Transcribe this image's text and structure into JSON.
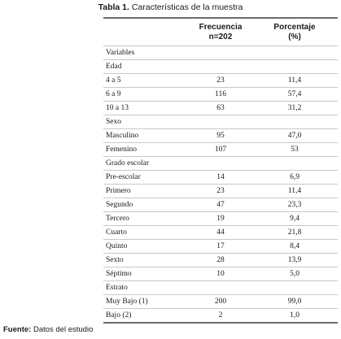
{
  "caption": {
    "label": "Tabla 1.",
    "text": "Características de la muestra"
  },
  "table": {
    "header": {
      "col1": "",
      "col2_line1": "Frecuencia",
      "col2_line2": "n=202",
      "col3_line1": "Porcentaje",
      "col3_line2": "(%)"
    },
    "rows": [
      {
        "label": "Variables",
        "freq": "",
        "pct": ""
      },
      {
        "label": "Edad",
        "freq": "",
        "pct": ""
      },
      {
        "label": "4 a 5",
        "freq": "23",
        "pct": "11,4"
      },
      {
        "label": "6 a 9",
        "freq": "116",
        "pct": "57,4"
      },
      {
        "label": "10 a 13",
        "freq": "63",
        "pct": "31,2"
      },
      {
        "label": "Sexo",
        "freq": "",
        "pct": ""
      },
      {
        "label": "Masculino",
        "freq": "95",
        "pct": "47,0"
      },
      {
        "label": "Femenino",
        "freq": "107",
        "pct": "53"
      },
      {
        "label": "Grado escolar",
        "freq": "",
        "pct": ""
      },
      {
        "label": "Pre-escolar",
        "freq": "14",
        "pct": "6,9"
      },
      {
        "label": "Primero",
        "freq": "23",
        "pct": "11,4"
      },
      {
        "label": "Segundo",
        "freq": "47",
        "pct": "23,3"
      },
      {
        "label": "Tercero",
        "freq": "19",
        "pct": "9,4"
      },
      {
        "label": "Cuarto",
        "freq": "44",
        "pct": "21,8"
      },
      {
        "label": "Quinto",
        "freq": "17",
        "pct": "8,4"
      },
      {
        "label": "Sexto",
        "freq": "28",
        "pct": "13,9"
      },
      {
        "label": "Séptimo",
        "freq": "10",
        "pct": "5,0"
      },
      {
        "label": "Estrato",
        "freq": "",
        "pct": ""
      },
      {
        "label": "Muy Bajo (1)",
        "freq": "200",
        "pct": "99,0"
      },
      {
        "label": "Bajo (2)",
        "freq": "2",
        "pct": "1,0"
      }
    ]
  },
  "source": {
    "label": "Fuente:",
    "text": "Datos del estudio"
  }
}
